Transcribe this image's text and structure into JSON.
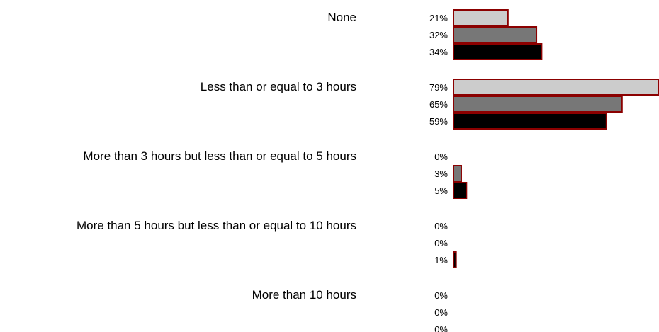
{
  "chart_data": {
    "type": "bar",
    "orientation": "horizontal",
    "categories": [
      "None",
      "Less than or equal to 3 hours",
      "More than 3 hours but less than or equal to 5 hours",
      "More than 5 hours but less than or equal to 10 hours",
      "More than 10 hours"
    ],
    "series": [
      {
        "values": [
          21,
          79,
          0,
          0,
          0
        ],
        "value_labels": [
          "21%",
          "79%",
          "0%",
          "0%",
          "0%"
        ],
        "color": "#cccccc"
      },
      {
        "values": [
          32,
          65,
          3,
          0,
          0
        ],
        "value_labels": [
          "32%",
          "65%",
          "3%",
          "0%",
          "0%"
        ],
        "color": "#777777"
      },
      {
        "values": [
          34,
          59,
          5,
          1,
          0
        ],
        "value_labels": [
          "34%",
          "59%",
          "5%",
          "1%",
          "0%"
        ],
        "color": "#000000"
      }
    ],
    "bar_border_color": "#8b0000",
    "xlim": [
      0,
      79
    ],
    "grid": false,
    "legend": "none",
    "title": "",
    "xlabel": "",
    "ylabel": ""
  }
}
